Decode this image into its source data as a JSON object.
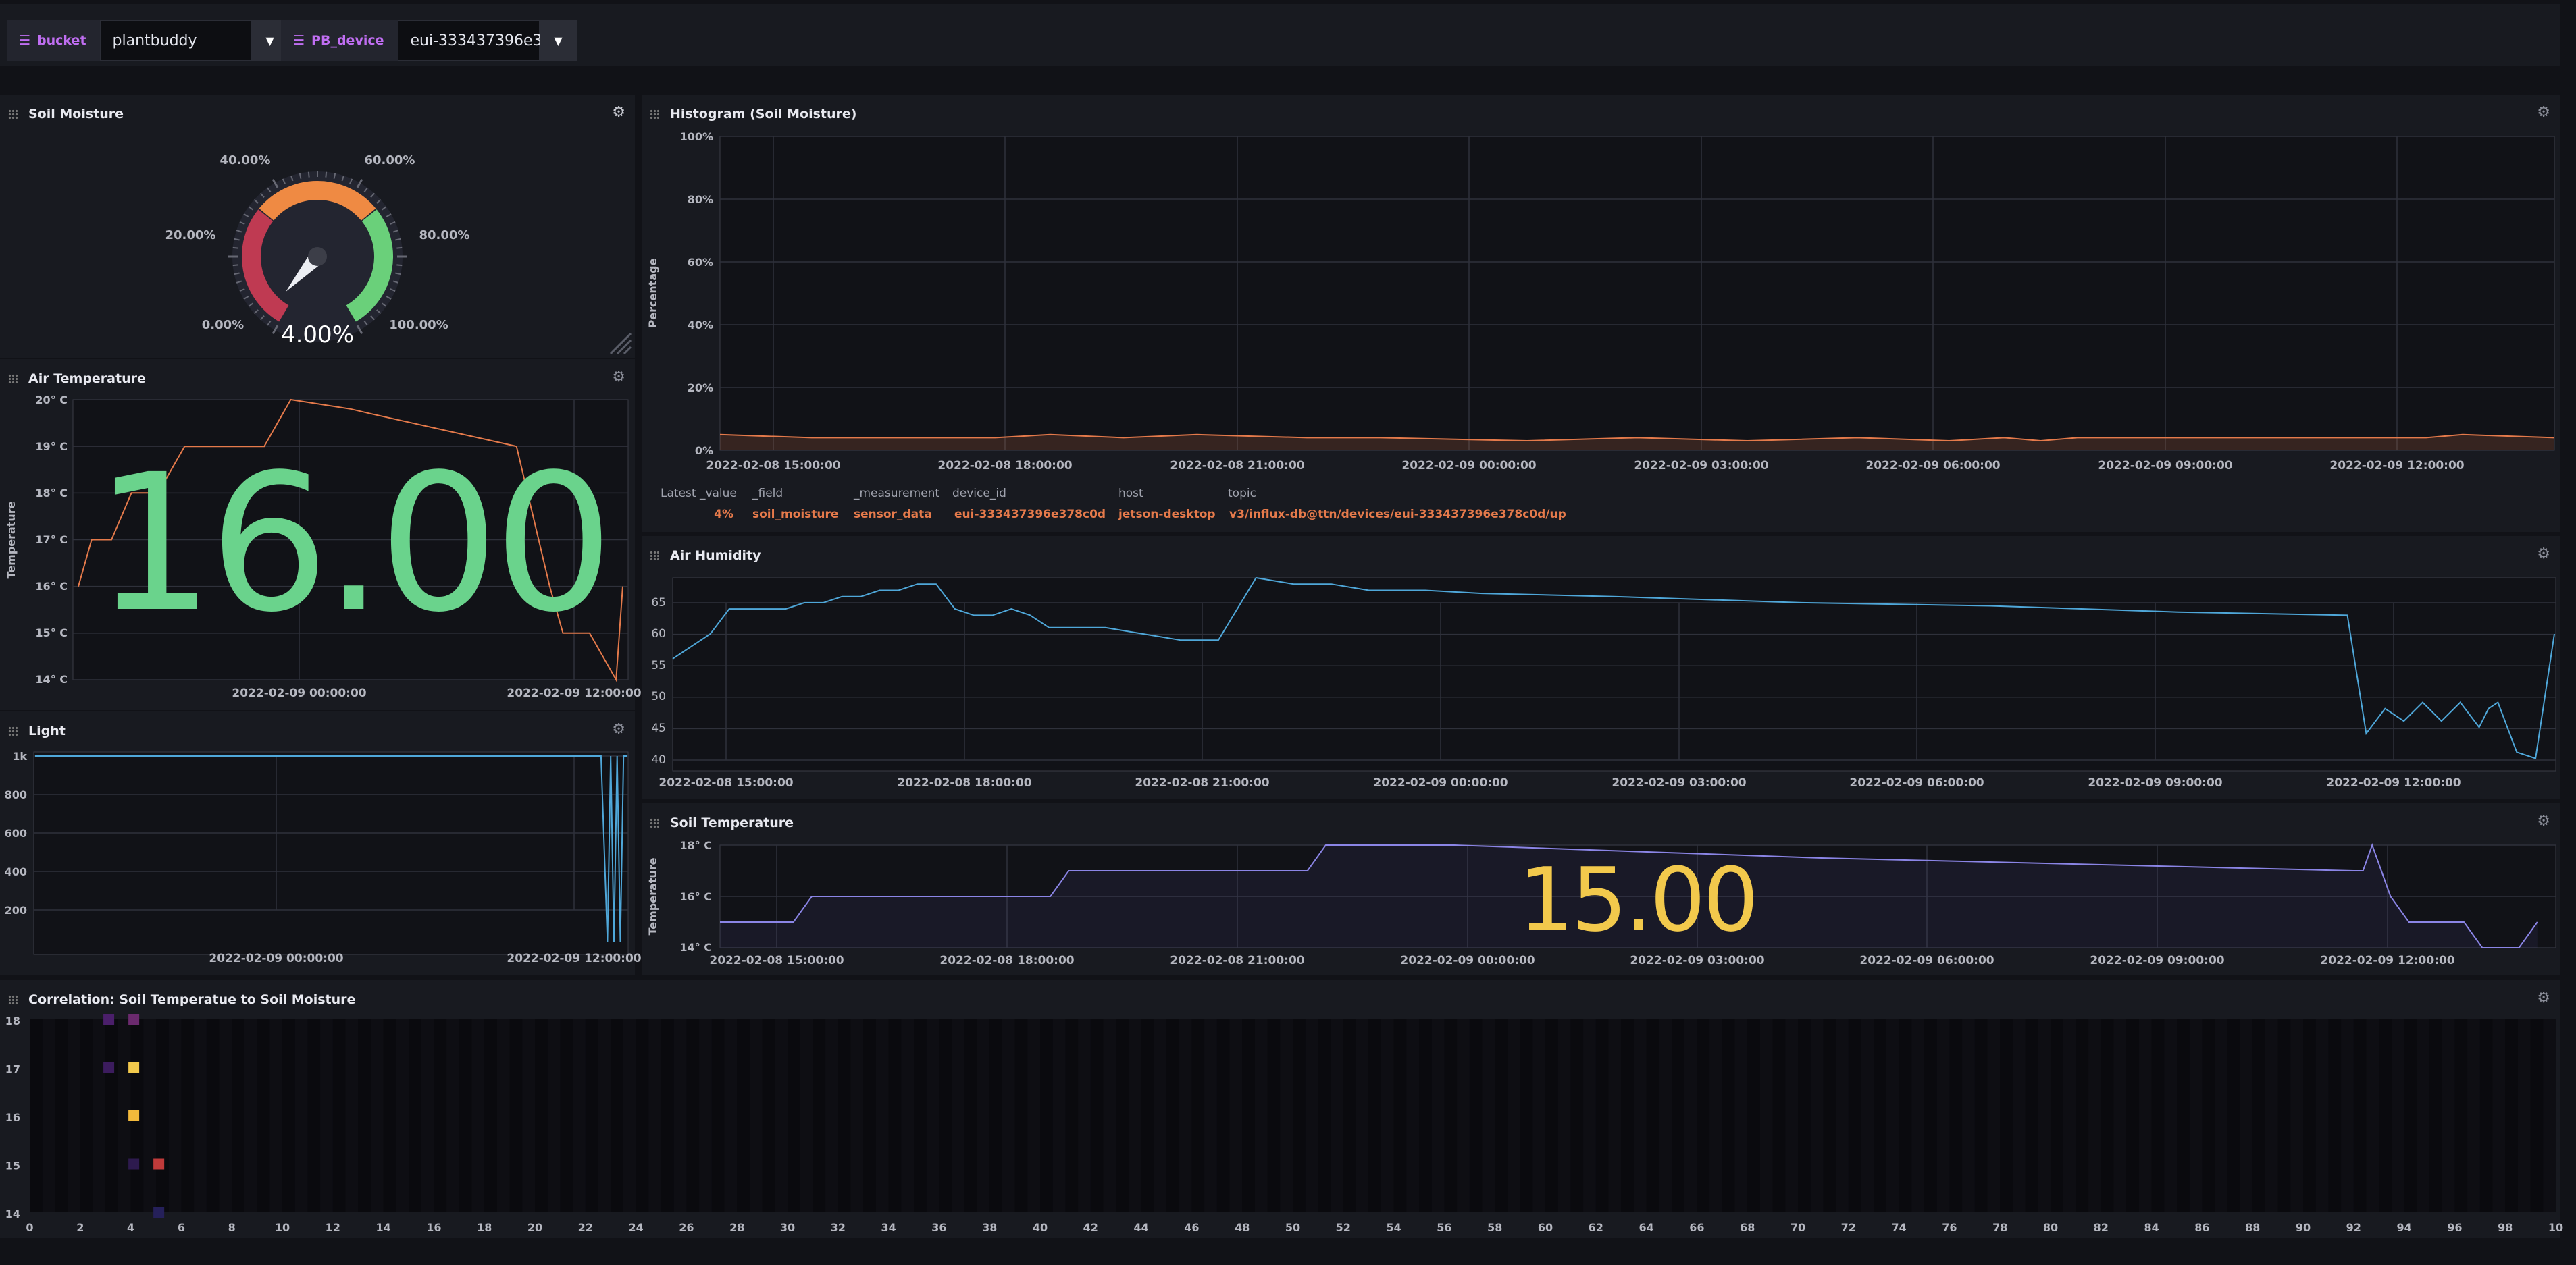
{
  "variables": [
    {
      "label": "bucket",
      "value": "plantbuddy"
    },
    {
      "label": "PB_device",
      "value": "eui-333437396e3"
    }
  ],
  "soil_moisture": {
    "title": "Soil Moisture",
    "gauge_ticks": [
      "0.00%",
      "20.00%",
      "40.00%",
      "60.00%",
      "80.00%",
      "100.00%"
    ],
    "value_text": "4.00%",
    "value": 4
  },
  "air_temperature": {
    "title": "Air Temperature",
    "big_value": "16.00",
    "ylabel": "Temperature",
    "yticks": [
      "20° C",
      "19° C",
      "18° C",
      "17° C",
      "16° C",
      "15° C",
      "14° C"
    ],
    "xticks": [
      "2022-02-09 00:00:00",
      "2022-02-09 12:00:00"
    ]
  },
  "light": {
    "title": "Light",
    "yticks": [
      "1k",
      "800",
      "600",
      "400",
      "200"
    ],
    "xticks": [
      "2022-02-09 00:00:00",
      "2022-02-09 12:00:00"
    ]
  },
  "histogram": {
    "title": "Histogram (Soil Moisture)",
    "ylabel": "Percentage",
    "yticks": [
      "100%",
      "80%",
      "60%",
      "40%",
      "20%",
      "0%"
    ],
    "xticks": [
      "2022-02-08 15:00:00",
      "2022-02-08 18:00:00",
      "2022-02-08 21:00:00",
      "2022-02-09 00:00:00",
      "2022-02-09 03:00:00",
      "2022-02-09 06:00:00",
      "2022-02-09 09:00:00",
      "2022-02-09 12:00:00"
    ],
    "legend_headers": [
      "Latest _value",
      "_field",
      "_measurement",
      "device_id",
      "host",
      "topic"
    ],
    "legend_values": [
      "4%",
      "soil_moisture",
      "sensor_data",
      "eui-333437396e378c0d",
      "jetson-desktop",
      "v3/influx-db@ttn/devices/eui-333437396e378c0d/up"
    ]
  },
  "air_humidity": {
    "title": "Air Humidity",
    "yticks": [
      "65",
      "60",
      "55",
      "50",
      "45",
      "40"
    ],
    "xticks": [
      "2022-02-08 15:00:00",
      "2022-02-08 18:00:00",
      "2022-02-08 21:00:00",
      "2022-02-09 00:00:00",
      "2022-02-09 03:00:00",
      "2022-02-09 06:00:00",
      "2022-02-09 09:00:00",
      "2022-02-09 12:00:00"
    ]
  },
  "soil_temperature": {
    "title": "Soil Temperature",
    "big_value": "15.00",
    "ylabel": "Temperature",
    "yticks": [
      "18° C",
      "16° C",
      "14° C"
    ],
    "xticks": [
      "2022-02-08 15:00:00",
      "2022-02-08 18:00:00",
      "2022-02-08 21:00:00",
      "2022-02-09 00:00:00",
      "2022-02-09 03:00:00",
      "2022-02-09 06:00:00",
      "2022-02-09 09:00:00",
      "2022-02-09 12:00:00"
    ]
  },
  "correlation": {
    "title": "Correlation: Soil Temperatue to Soil Moisture",
    "yticks": [
      "18",
      "17",
      "16",
      "15",
      "14"
    ],
    "xticks": [
      "0",
      "2",
      "4",
      "6",
      "8",
      "10",
      "12",
      "14",
      "16",
      "18",
      "20",
      "22",
      "24",
      "26",
      "28",
      "30",
      "32",
      "34",
      "36",
      "38",
      "40",
      "42",
      "44",
      "46",
      "48",
      "50",
      "52",
      "54",
      "56",
      "58",
      "60",
      "62",
      "64",
      "66",
      "68",
      "70",
      "72",
      "74",
      "76",
      "78",
      "80",
      "82",
      "84",
      "86",
      "88",
      "90",
      "92",
      "94",
      "96",
      "98",
      "10"
    ]
  },
  "colors": {
    "gauge_red": "#bf3a52",
    "gauge_orange": "#ef8a43",
    "gauge_green": "#6ad07a",
    "big_green": "#6ad38c",
    "big_yellow": "#f2c94c",
    "orange_line": "#e57a4b",
    "blue_line": "#4fa7d9",
    "purple_line": "#8b85e6",
    "variable_label": "#c06ef2"
  },
  "chart_data": [
    {
      "type": "line",
      "title": "Air Temperature",
      "ylabel": "Temperature",
      "ylim": [
        14,
        20
      ],
      "x": [
        0,
        2,
        5,
        8,
        12,
        16,
        22,
        28,
        32,
        41,
        44,
        66,
        71,
        73,
        77,
        81,
        82
      ],
      "values": [
        16,
        17,
        17,
        18,
        18,
        19,
        19,
        19,
        20,
        19.8,
        19.7,
        19,
        16,
        15,
        15,
        14,
        16
      ]
    },
    {
      "type": "line",
      "title": "Light",
      "ylim": [
        0,
        1000
      ],
      "x": [
        0,
        20,
        40,
        60,
        80,
        88,
        89,
        89.5,
        90,
        90.5,
        91,
        91.5,
        92
      ],
      "values": [
        1000,
        1000,
        1000,
        1000,
        1000,
        1000,
        30,
        1000,
        30,
        1000,
        30,
        1000,
        1000
      ]
    },
    {
      "type": "area",
      "title": "Histogram (Soil Moisture)",
      "ylabel": "Percentage",
      "ylim": [
        0,
        100
      ],
      "x": [
        0,
        5,
        10,
        15,
        18,
        22,
        26,
        32,
        36,
        44,
        50,
        56,
        62,
        67,
        70,
        72,
        74,
        80,
        88,
        93,
        95,
        100
      ],
      "values": [
        5,
        4,
        4,
        4,
        5,
        4,
        5,
        4,
        4,
        3,
        4,
        3,
        4,
        3,
        4,
        3,
        4,
        4,
        4,
        4,
        5,
        4
      ]
    },
    {
      "type": "line",
      "title": "Air Humidity",
      "ylim": [
        38,
        69
      ],
      "x": [
        0,
        2,
        3,
        5,
        6,
        7,
        8,
        9,
        10,
        11,
        12,
        13,
        14,
        15,
        16,
        17,
        18,
        19,
        20,
        21,
        22,
        23,
        25,
        27,
        28,
        29,
        30,
        31,
        33,
        34,
        35,
        37,
        38,
        40,
        43,
        50,
        60,
        70,
        80,
        89,
        90,
        91,
        92,
        93,
        94,
        95,
        96,
        96.5,
        97,
        98,
        99,
        100
      ],
      "values": [
        56,
        60,
        64,
        64,
        64,
        65,
        65,
        66,
        66,
        67,
        67,
        68,
        68,
        64,
        63,
        63,
        64,
        63,
        61,
        61,
        61,
        61,
        60,
        59,
        59,
        59,
        64,
        69,
        68,
        68,
        68,
        67,
        67,
        67,
        66.5,
        66,
        65,
        64.5,
        63.5,
        63,
        44,
        48,
        46,
        49,
        46,
        49,
        45,
        48,
        49,
        41,
        40,
        60
      ]
    },
    {
      "type": "area",
      "title": "Soil Temperature",
      "ylabel": "Temperature",
      "ylim": [
        14,
        18
      ],
      "x": [
        0,
        4,
        5,
        18,
        19,
        32,
        33,
        40,
        60,
        89,
        89.5,
        90,
        91,
        92,
        95,
        96,
        97,
        98,
        99
      ],
      "values": [
        15,
        15,
        16,
        16,
        17,
        17,
        18,
        18,
        17.5,
        17,
        17,
        18,
        16,
        15,
        15,
        14,
        14,
        14,
        15
      ]
    },
    {
      "type": "heatmap",
      "title": "Correlation: Soil Temperatue to Soil Moisture",
      "cells": [
        {
          "x": 3,
          "y": 18,
          "c": "#4b1f6b"
        },
        {
          "x": 4,
          "y": 18,
          "c": "#6b2a6e"
        },
        {
          "x": 3,
          "y": 17,
          "c": "#3c1c5e"
        },
        {
          "x": 4,
          "y": 17,
          "c": "#f2c94c"
        },
        {
          "x": 4,
          "y": 16,
          "c": "#f2b93b"
        },
        {
          "x": 4,
          "y": 15,
          "c": "#2d1a4e"
        },
        {
          "x": 5,
          "y": 15,
          "c": "#bf3a3a"
        },
        {
          "x": 5,
          "y": 14,
          "c": "#25205a"
        }
      ]
    }
  ]
}
